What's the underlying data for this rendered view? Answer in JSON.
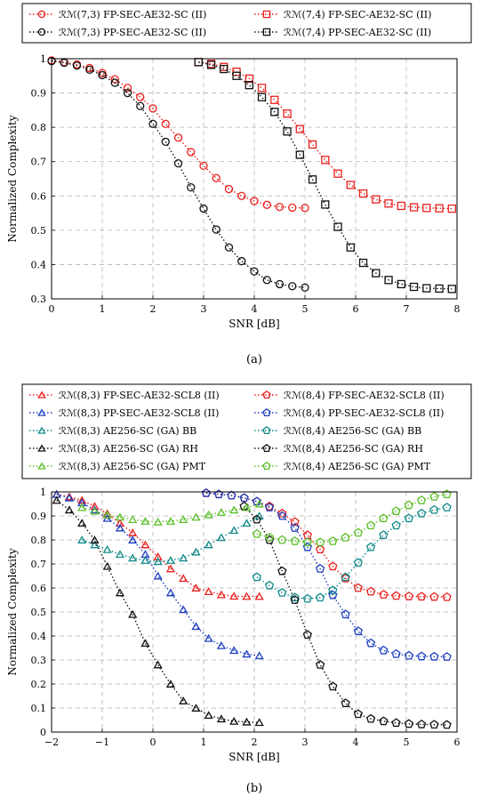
{
  "chart_data": [
    {
      "type": "line",
      "sublabel": "(a)",
      "xlabel": "SNR [dB]",
      "ylabel": "Normalized Complexity",
      "xlim": [
        0,
        8
      ],
      "ylim": [
        0.3,
        1
      ],
      "xticks": [
        "0",
        "1",
        "2",
        "3",
        "4",
        "5",
        "6",
        "7",
        "8"
      ],
      "yticks": [
        "0.3",
        "0.4",
        "0.5",
        "0.6",
        "0.7",
        "0.8",
        "0.9",
        "1"
      ],
      "grid": true,
      "legend_placement": "top",
      "series": [
        {
          "name": "ℛℳ(7,3) FP-SEC-AE32-SC (II)",
          "color": "#e8211e",
          "marker": "circle",
          "x": [
            0,
            0.25,
            0.5,
            0.75,
            1,
            1.25,
            1.5,
            1.75,
            2,
            2.25,
            2.5,
            2.75,
            3,
            3.25,
            3.5,
            3.75,
            4,
            4.25,
            4.5,
            4.75,
            5
          ],
          "y": [
            0.995,
            0.99,
            0.983,
            0.973,
            0.958,
            0.94,
            0.915,
            0.888,
            0.855,
            0.81,
            0.77,
            0.728,
            0.688,
            0.652,
            0.62,
            0.6,
            0.585,
            0.574,
            0.568,
            0.566,
            0.565
          ]
        },
        {
          "name": "ℛℳ(7,4) FP-SEC-AE32-SC (II)",
          "color": "#e8211e",
          "marker": "square",
          "x": [
            2.9,
            3.15,
            3.4,
            3.65,
            3.9,
            4.15,
            4.4,
            4.65,
            4.9,
            5.15,
            5.4,
            5.65,
            5.9,
            6.15,
            6.4,
            6.65,
            6.9,
            7.15,
            7.4,
            7.65,
            7.9
          ],
          "y": [
            0.99,
            0.985,
            0.976,
            0.962,
            0.942,
            0.915,
            0.88,
            0.84,
            0.795,
            0.75,
            0.705,
            0.665,
            0.632,
            0.607,
            0.59,
            0.578,
            0.571,
            0.567,
            0.565,
            0.564,
            0.563
          ]
        },
        {
          "name": "ℛℳ(7,3) PP-SEC-AE32-SC (II)",
          "color": "#111111",
          "marker": "circle",
          "x": [
            0,
            0.25,
            0.5,
            0.75,
            1,
            1.25,
            1.5,
            1.75,
            2,
            2.25,
            2.5,
            2.75,
            3,
            3.25,
            3.5,
            3.75,
            4,
            4.25,
            4.5,
            4.75,
            5
          ],
          "y": [
            0.993,
            0.988,
            0.98,
            0.968,
            0.952,
            0.93,
            0.9,
            0.862,
            0.81,
            0.758,
            0.695,
            0.625,
            0.563,
            0.502,
            0.45,
            0.41,
            0.38,
            0.355,
            0.343,
            0.337,
            0.333
          ]
        },
        {
          "name": "ℛℳ(7,4) PP-SEC-AE32-SC (II)",
          "color": "#111111",
          "marker": "square",
          "x": [
            2.9,
            3.15,
            3.4,
            3.65,
            3.9,
            4.15,
            4.4,
            4.65,
            4.9,
            5.15,
            5.4,
            5.65,
            5.9,
            6.15,
            6.4,
            6.65,
            6.9,
            7.15,
            7.4,
            7.65,
            7.9
          ],
          "y": [
            0.99,
            0.982,
            0.97,
            0.95,
            0.923,
            0.888,
            0.845,
            0.788,
            0.72,
            0.648,
            0.575,
            0.51,
            0.45,
            0.405,
            0.375,
            0.355,
            0.343,
            0.335,
            0.331,
            0.33,
            0.329
          ]
        }
      ]
    },
    {
      "type": "line",
      "sublabel": "(b)",
      "xlabel": "SNR [dB]",
      "ylabel": "Normalized Complexity",
      "xlim": [
        -2,
        6
      ],
      "ylim": [
        0,
        1
      ],
      "xticks": [
        "−2",
        "−1",
        "0",
        "1",
        "2",
        "3",
        "4",
        "5",
        "6"
      ],
      "yticks": [
        "0",
        "0.1",
        "0.2",
        "0.3",
        "0.4",
        "0.5",
        "0.6",
        "0.7",
        "0.8",
        "0.9",
        "1"
      ],
      "grid": true,
      "legend_placement": "top",
      "series": [
        {
          "name": "ℛℳ(8,3) FP-SEC-AE32-SCL8 (II)",
          "color": "#e8211e",
          "marker": "triangle",
          "x": [
            -1.9,
            -1.65,
            -1.4,
            -1.15,
            -0.9,
            -0.65,
            -0.4,
            -0.15,
            0.1,
            0.35,
            0.6,
            0.85,
            1.1,
            1.35,
            1.6,
            1.85,
            2.1
          ],
          "y": [
            0.99,
            0.98,
            0.965,
            0.94,
            0.91,
            0.87,
            0.83,
            0.78,
            0.73,
            0.68,
            0.64,
            0.6,
            0.585,
            0.572,
            0.566,
            0.565,
            0.565
          ]
        },
        {
          "name": "ℛℳ(8,4) FP-SEC-AE32-SCL8 (II)",
          "color": "#e8211e",
          "marker": "pentagon",
          "x": [
            1.05,
            1.3,
            1.55,
            1.8,
            2.05,
            2.3,
            2.55,
            2.8,
            3.05,
            3.3,
            3.55,
            3.8,
            4.05,
            4.3,
            4.55,
            4.8,
            5.05,
            5.3,
            5.55,
            5.8
          ],
          "y": [
            0.995,
            0.99,
            0.985,
            0.975,
            0.96,
            0.94,
            0.91,
            0.875,
            0.82,
            0.76,
            0.69,
            0.64,
            0.6,
            0.585,
            0.572,
            0.567,
            0.565,
            0.564,
            0.563,
            0.562
          ]
        },
        {
          "name": "ℛℳ(8,3) PP-SEC-AE32-SCL8 (II)",
          "color": "#1f3fbf",
          "marker": "triangle",
          "x": [
            -1.9,
            -1.65,
            -1.4,
            -1.15,
            -0.9,
            -0.65,
            -0.4,
            -0.15,
            0.1,
            0.35,
            0.6,
            0.85,
            1.1,
            1.35,
            1.6,
            1.85,
            2.1
          ],
          "y": [
            0.99,
            0.975,
            0.955,
            0.925,
            0.89,
            0.85,
            0.8,
            0.74,
            0.65,
            0.58,
            0.51,
            0.44,
            0.39,
            0.36,
            0.34,
            0.325,
            0.318
          ]
        },
        {
          "name": "ℛℳ(8,4) PP-SEC-AE32-SCL8 (II)",
          "color": "#1f3fbf",
          "marker": "pentagon",
          "x": [
            1.05,
            1.3,
            1.55,
            1.8,
            2.05,
            2.3,
            2.55,
            2.8,
            3.05,
            3.3,
            3.55,
            3.8,
            4.05,
            4.3,
            4.55,
            4.8,
            5.05,
            5.3,
            5.55,
            5.8
          ],
          "y": [
            0.995,
            0.99,
            0.985,
            0.975,
            0.96,
            0.935,
            0.9,
            0.85,
            0.77,
            0.68,
            0.57,
            0.49,
            0.42,
            0.37,
            0.34,
            0.325,
            0.318,
            0.315,
            0.314,
            0.313
          ]
        },
        {
          "name": "ℛℳ(8,3) AE256-SC (GA) BB",
          "color": "#138a8a",
          "marker": "triangle",
          "x": [
            -1.4,
            -1.15,
            -0.9,
            -0.65,
            -0.4,
            -0.15,
            0.1,
            0.35,
            0.6,
            0.85,
            1.1,
            1.35,
            1.6,
            1.85,
            2.1
          ],
          "y": [
            0.8,
            0.78,
            0.76,
            0.74,
            0.725,
            0.715,
            0.71,
            0.715,
            0.725,
            0.75,
            0.78,
            0.81,
            0.84,
            0.87,
            0.9
          ]
        },
        {
          "name": "ℛℳ(8,4) AE256-SC (GA) BB",
          "color": "#138a8a",
          "marker": "pentagon",
          "x": [
            2.05,
            2.3,
            2.55,
            2.8,
            3.05,
            3.3,
            3.55,
            3.8,
            4.05,
            4.3,
            4.55,
            4.8,
            5.05,
            5.3,
            5.55,
            5.8
          ],
          "y": [
            0.645,
            0.61,
            0.58,
            0.56,
            0.555,
            0.56,
            0.59,
            0.645,
            0.705,
            0.77,
            0.82,
            0.86,
            0.89,
            0.91,
            0.925,
            0.935
          ]
        },
        {
          "name": "ℛℳ(8,3) AE256-SC (GA) RH",
          "color": "#111111",
          "marker": "triangle",
          "x": [
            -1.9,
            -1.65,
            -1.4,
            -1.15,
            -0.9,
            -0.65,
            -0.4,
            -0.15,
            0.1,
            0.35,
            0.6,
            0.85,
            1.1,
            1.35,
            1.6,
            1.85,
            2.1
          ],
          "y": [
            0.965,
            0.925,
            0.87,
            0.8,
            0.69,
            0.58,
            0.49,
            0.37,
            0.28,
            0.2,
            0.13,
            0.1,
            0.07,
            0.055,
            0.045,
            0.042,
            0.04
          ]
        },
        {
          "name": "ℛℳ(8,4) AE256-SC (GA) RH",
          "color": "#111111",
          "marker": "pentagon",
          "x": [
            1.8,
            2.05,
            2.3,
            2.55,
            2.8,
            3.05,
            3.3,
            3.55,
            3.8,
            4.05,
            4.3,
            4.55,
            4.8,
            5.05,
            5.3,
            5.55,
            5.8
          ],
          "y": [
            0.94,
            0.885,
            0.8,
            0.67,
            0.55,
            0.405,
            0.28,
            0.19,
            0.12,
            0.075,
            0.055,
            0.045,
            0.038,
            0.034,
            0.032,
            0.031,
            0.03
          ]
        },
        {
          "name": "ℛℳ(8,3) AE256-SC (GA) PMT",
          "color": "#5cbf2a",
          "marker": "triangle",
          "x": [
            -1.4,
            -1.15,
            -0.9,
            -0.65,
            -0.4,
            -0.15,
            0.1,
            0.35,
            0.6,
            0.85,
            1.1,
            1.35,
            1.6,
            1.85,
            2.1
          ],
          "y": [
            0.935,
            0.92,
            0.905,
            0.895,
            0.885,
            0.878,
            0.875,
            0.878,
            0.885,
            0.895,
            0.905,
            0.915,
            0.925,
            0.935,
            0.95
          ]
        },
        {
          "name": "ℛℳ(8,4) AE256-SC (GA) PMT",
          "color": "#5cbf2a",
          "marker": "pentagon",
          "x": [
            2.05,
            2.3,
            2.55,
            2.8,
            3.05,
            3.3,
            3.55,
            3.8,
            4.05,
            4.3,
            4.55,
            4.8,
            5.05,
            5.3,
            5.55,
            5.8
          ],
          "y": [
            0.825,
            0.81,
            0.8,
            0.795,
            0.79,
            0.79,
            0.795,
            0.81,
            0.83,
            0.86,
            0.89,
            0.92,
            0.945,
            0.965,
            0.98,
            0.99
          ]
        }
      ]
    }
  ]
}
